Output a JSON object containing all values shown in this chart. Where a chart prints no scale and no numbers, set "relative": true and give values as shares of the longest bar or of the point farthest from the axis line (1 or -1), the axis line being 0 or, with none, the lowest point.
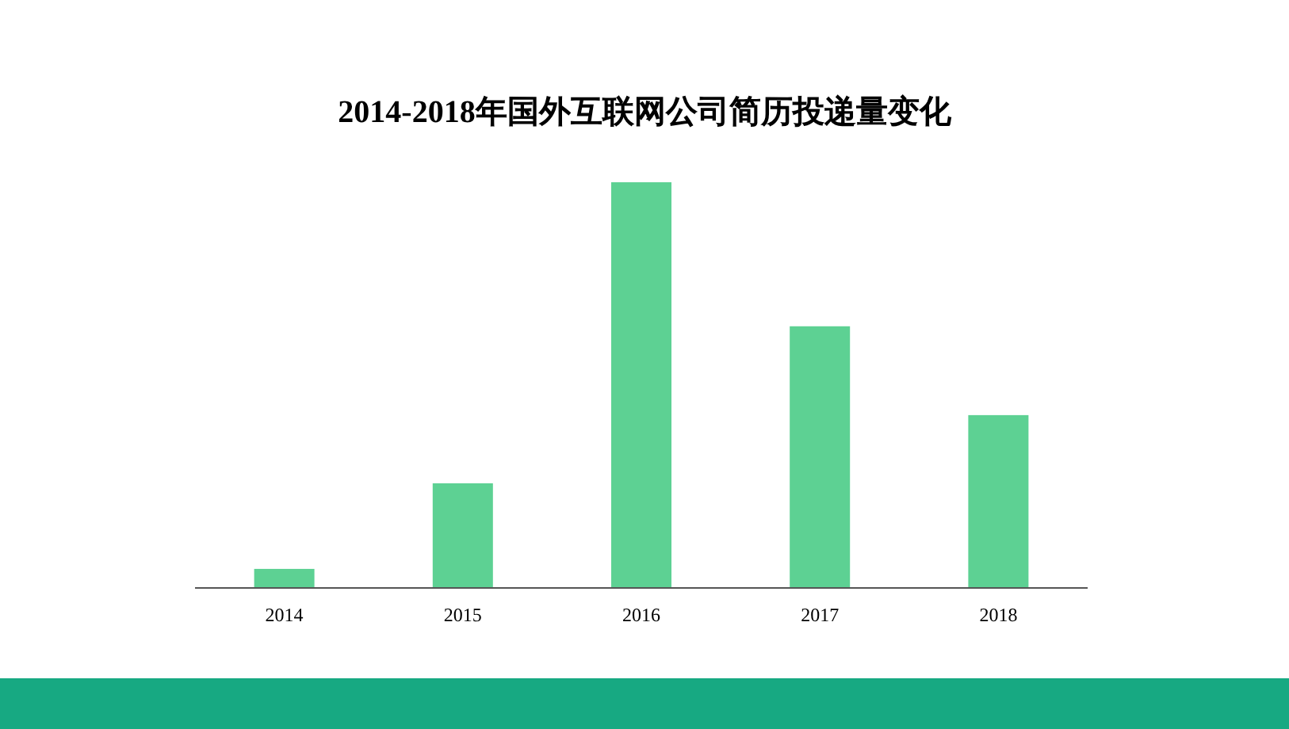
{
  "chart_data": {
    "type": "bar",
    "title": "2014-2018年国外互联网公司简历投递量变化",
    "categories": [
      "2014",
      "2015",
      "2016",
      "2017",
      "2018"
    ],
    "values": [
      0.047,
      0.258,
      1,
      0.645,
      0.426
    ],
    "relative": true,
    "color": "#5dd193"
  }
}
